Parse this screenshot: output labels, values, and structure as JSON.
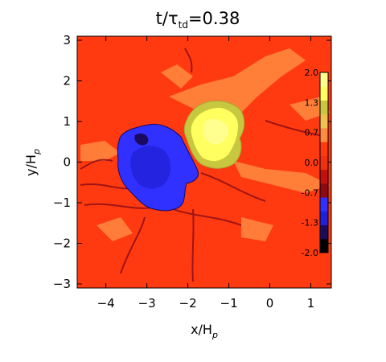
{
  "chart_data": {
    "type": "heatmap",
    "title": "t/τ_td=0.38",
    "title_parts": {
      "base": "t/τ",
      "sub": "td",
      "tail": "=0.38"
    },
    "xlabel": "x/H_p",
    "xlabel_parts": {
      "base": "x/H",
      "sub": "p"
    },
    "ylabel": "y/H_p",
    "ylabel_parts": {
      "base": "y/H",
      "sub": "p"
    },
    "xlim": [
      -4.7,
      1.5
    ],
    "ylim": [
      -3.1,
      3.1
    ],
    "xticks": [
      -4,
      -3,
      -2,
      -1,
      0,
      1
    ],
    "yticks": [
      -3,
      -2,
      -1,
      0,
      1,
      2,
      3
    ],
    "colorbar": {
      "range": [
        -2.0,
        2.0
      ],
      "ticks": [
        "2.0",
        "1.3",
        "0.7",
        "0.0",
        "-0.7",
        "-1.3",
        "-2.0"
      ],
      "colors": [
        "#000000",
        "#1a0a60",
        "#2020d8",
        "#3030ff",
        "#8a0a18",
        "#c01010",
        "#f03010",
        "#ff3a10",
        "#ff8a40",
        "#f0c050",
        "#c8c840",
        "#ffff60",
        "#ffff90"
      ]
    },
    "background_value": 0.35,
    "regions": [
      {
        "name": "negative-lobe",
        "center": [
          -2.85,
          0.05
        ],
        "approx_value": -1.1
      },
      {
        "name": "positive-lobe",
        "center": [
          -1.3,
          0.85
        ],
        "approx_value": 1.4
      },
      {
        "name": "positive-filaments-ne",
        "center": [
          -0.5,
          1.6
        ],
        "approx_value": 0.7
      }
    ]
  }
}
